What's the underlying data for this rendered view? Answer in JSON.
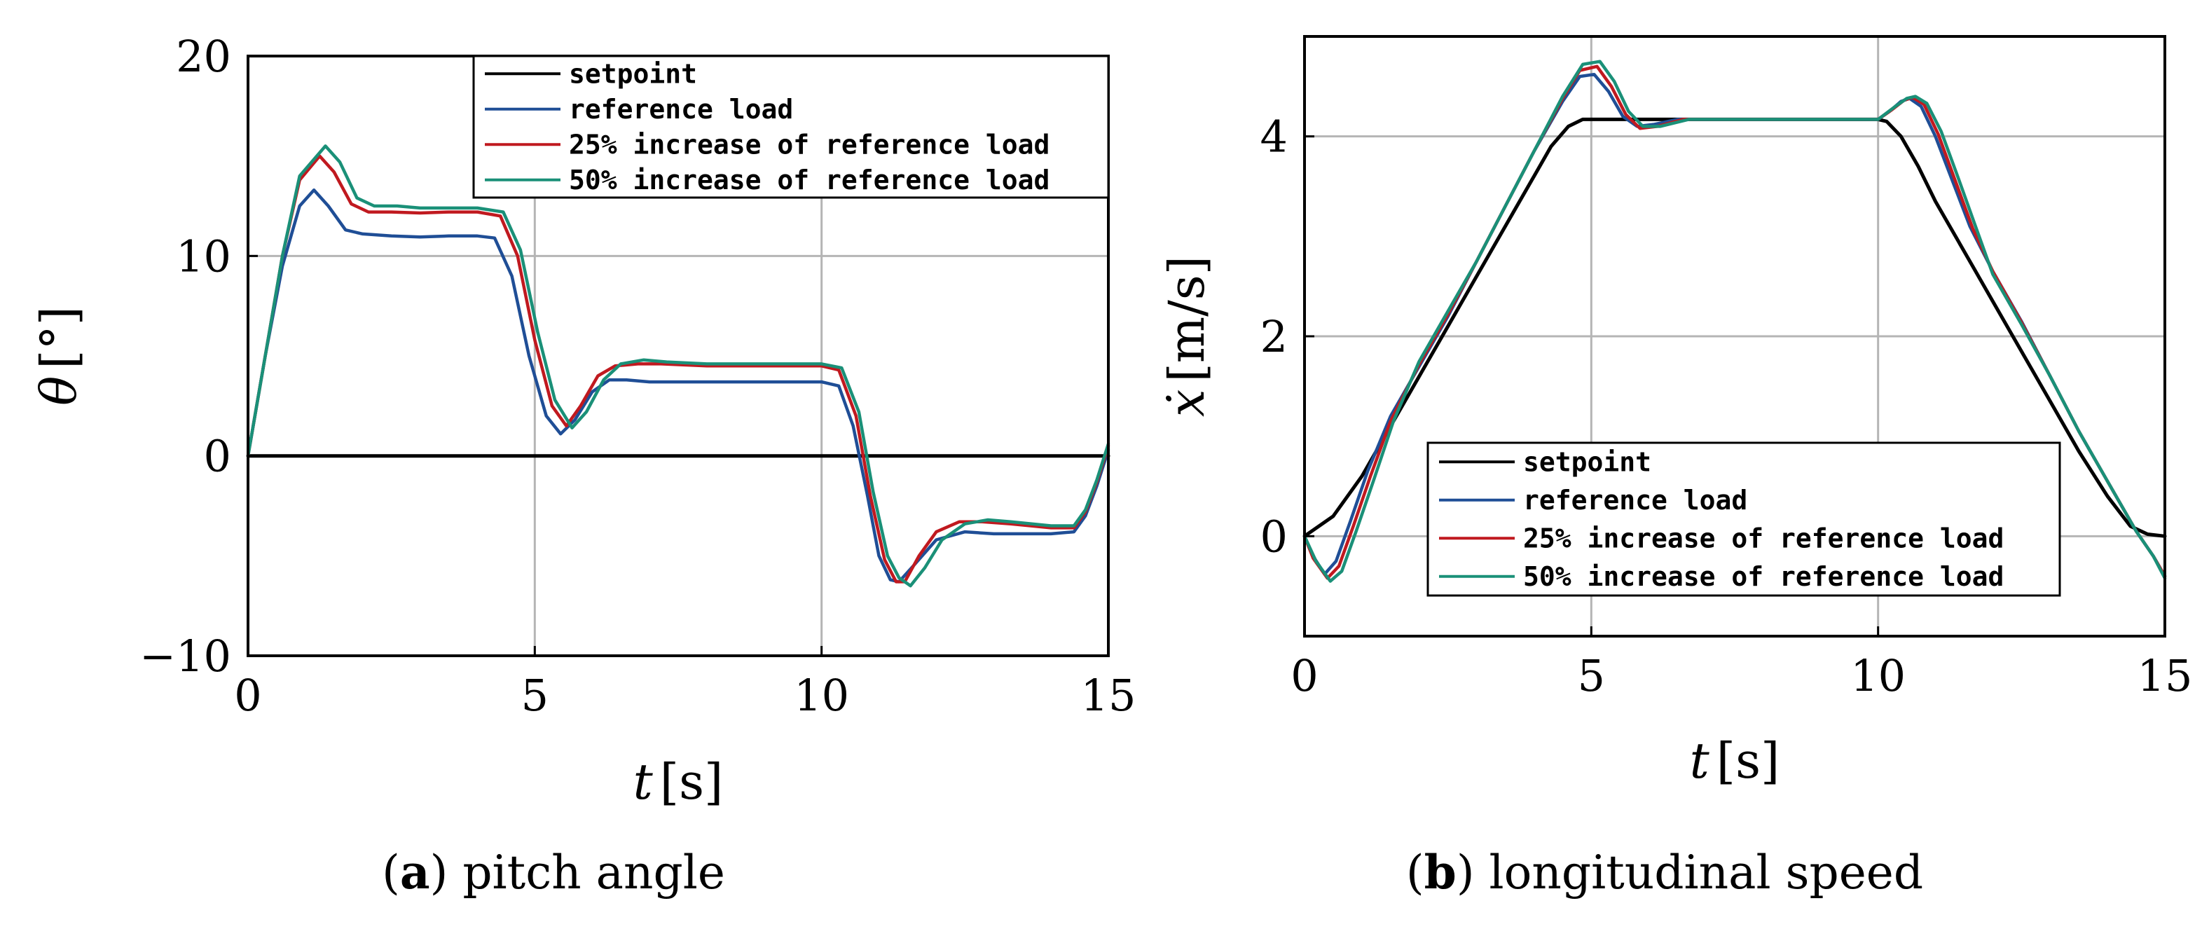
{
  "chart_data": [
    {
      "type": "line",
      "caption_letter": "a",
      "caption_text": "pitch angle",
      "xlabel_var": "t",
      "xlabel_unit": "[s]",
      "ylabel_var": "θ",
      "ylabel_unit": "[°]",
      "xlim": [
        0,
        15
      ],
      "ylim": [
        -10,
        20
      ],
      "xticks": [
        0,
        5,
        10,
        15
      ],
      "xtick_labels": [
        "0",
        "5",
        "10",
        "15"
      ],
      "yticks": [
        -10,
        0,
        10,
        20
      ],
      "ytick_labels": [
        "−10",
        "0",
        "10",
        "20"
      ],
      "grid": true,
      "legend_position": "top-right",
      "series": [
        {
          "name": "setpoint",
          "color": "#000000",
          "x": [
            0,
            15
          ],
          "y": [
            0,
            0
          ]
        },
        {
          "name": "reference load",
          "color": "#1f4e96",
          "x": [
            0,
            0.3,
            0.6,
            0.9,
            1.15,
            1.4,
            1.7,
            2.0,
            2.5,
            3.0,
            3.5,
            4.0,
            4.3,
            4.6,
            4.9,
            5.2,
            5.45,
            5.7,
            6.0,
            6.3,
            6.6,
            7.0,
            8.0,
            9.0,
            10.0,
            10.3,
            10.55,
            10.8,
            11.0,
            11.2,
            11.35,
            11.6,
            12.0,
            12.5,
            13.0,
            13.5,
            14.0,
            14.4,
            14.6,
            14.8,
            15.0
          ],
          "y": [
            0,
            5.0,
            9.5,
            12.5,
            13.3,
            12.5,
            11.3,
            11.1,
            11.0,
            10.95,
            11.0,
            11.0,
            10.9,
            9.0,
            5.0,
            2.0,
            1.1,
            1.8,
            3.2,
            3.8,
            3.8,
            3.7,
            3.7,
            3.7,
            3.7,
            3.5,
            1.5,
            -2.0,
            -5.0,
            -6.2,
            -6.3,
            -5.5,
            -4.2,
            -3.8,
            -3.9,
            -3.9,
            -3.9,
            -3.8,
            -3.0,
            -1.5,
            0.3
          ]
        },
        {
          "name": "25% increase of reference load",
          "color": "#c0191f",
          "x": [
            0,
            0.3,
            0.6,
            0.9,
            1.25,
            1.5,
            1.8,
            2.1,
            2.5,
            3.0,
            3.5,
            4.0,
            4.4,
            4.7,
            5.0,
            5.3,
            5.55,
            5.8,
            6.1,
            6.4,
            6.8,
            7.2,
            8.0,
            9.0,
            10.0,
            10.3,
            10.6,
            10.85,
            11.1,
            11.3,
            11.45,
            11.7,
            12.0,
            12.4,
            12.8,
            13.3,
            14.0,
            14.4,
            14.6,
            14.8,
            15.0
          ],
          "y": [
            0,
            5.0,
            10.0,
            13.8,
            15.0,
            14.2,
            12.6,
            12.2,
            12.2,
            12.15,
            12.2,
            12.2,
            12.0,
            10.0,
            5.8,
            2.5,
            1.5,
            2.5,
            4.0,
            4.5,
            4.6,
            4.6,
            4.5,
            4.5,
            4.5,
            4.3,
            2.0,
            -2.0,
            -5.2,
            -6.3,
            -6.3,
            -5.0,
            -3.8,
            -3.3,
            -3.3,
            -3.4,
            -3.6,
            -3.6,
            -2.8,
            -1.3,
            0.5
          ]
        },
        {
          "name": "50% increase of reference load",
          "color": "#1a9078",
          "x": [
            0,
            0.3,
            0.6,
            0.9,
            1.35,
            1.6,
            1.9,
            2.2,
            2.6,
            3.0,
            3.5,
            4.0,
            4.45,
            4.75,
            5.05,
            5.35,
            5.65,
            5.9,
            6.2,
            6.5,
            6.9,
            7.3,
            8.0,
            9.0,
            10.0,
            10.35,
            10.65,
            10.9,
            11.15,
            11.35,
            11.55,
            11.8,
            12.1,
            12.5,
            12.9,
            13.3,
            14.0,
            14.4,
            14.6,
            14.8,
            15.0
          ],
          "y": [
            0,
            5.0,
            10.0,
            14.0,
            15.5,
            14.7,
            12.9,
            12.5,
            12.5,
            12.4,
            12.4,
            12.4,
            12.2,
            10.3,
            6.2,
            2.8,
            1.4,
            2.2,
            3.8,
            4.6,
            4.8,
            4.7,
            4.6,
            4.6,
            4.6,
            4.4,
            2.2,
            -1.8,
            -5.0,
            -6.1,
            -6.5,
            -5.6,
            -4.2,
            -3.4,
            -3.2,
            -3.3,
            -3.5,
            -3.5,
            -2.7,
            -1.2,
            0.6
          ]
        }
      ]
    },
    {
      "type": "line",
      "caption_letter": "b",
      "caption_text": "longitudinal speed",
      "xlabel_var": "t",
      "xlabel_unit": "[s]",
      "ylabel_var": "ẋ",
      "ylabel_unit": "[m/s]",
      "xlim": [
        0,
        15
      ],
      "ylim": [
        -1,
        5
      ],
      "xticks": [
        0,
        5,
        10,
        15
      ],
      "xtick_labels": [
        "0",
        "5",
        "10",
        "15"
      ],
      "yticks": [
        0,
        2,
        4
      ],
      "ytick_labels": [
        "0",
        "2",
        "4"
      ],
      "grid": true,
      "legend_position": "bottom-left",
      "series": [
        {
          "name": "setpoint",
          "color": "#000000",
          "x": [
            0,
            0.5,
            1.0,
            1.5,
            2.0,
            2.5,
            3.0,
            3.5,
            4.0,
            4.3,
            4.6,
            4.85,
            5.0,
            6.0,
            7.0,
            8.0,
            9.0,
            10.0,
            10.15,
            10.4,
            10.7,
            11.0,
            11.5,
            12.0,
            12.5,
            13.0,
            13.5,
            14.0,
            14.4,
            14.7,
            15.0
          ],
          "y": [
            0,
            0.2,
            0.6,
            1.1,
            1.6,
            2.1,
            2.6,
            3.1,
            3.6,
            3.9,
            4.1,
            4.17,
            4.17,
            4.17,
            4.17,
            4.17,
            4.17,
            4.17,
            4.15,
            4.0,
            3.7,
            3.35,
            2.85,
            2.35,
            1.85,
            1.35,
            0.85,
            0.4,
            0.1,
            0.02,
            0
          ]
        },
        {
          "name": "reference load",
          "color": "#1f4e96",
          "x": [
            0,
            0.15,
            0.35,
            0.55,
            0.8,
            1.1,
            1.5,
            2.0,
            2.5,
            3.0,
            3.5,
            4.0,
            4.5,
            4.8,
            5.05,
            5.3,
            5.55,
            5.8,
            6.1,
            6.5,
            7.0,
            8.0,
            9.0,
            10.0,
            10.2,
            10.4,
            10.55,
            10.75,
            11.0,
            11.3,
            11.6,
            12.0,
            12.5,
            13.0,
            13.5,
            14.0,
            14.5,
            14.8,
            15.0
          ],
          "y": [
            0,
            -0.2,
            -0.38,
            -0.25,
            0.15,
            0.65,
            1.2,
            1.7,
            2.2,
            2.75,
            3.3,
            3.85,
            4.35,
            4.6,
            4.62,
            4.45,
            4.2,
            4.1,
            4.12,
            4.17,
            4.17,
            4.17,
            4.17,
            4.17,
            4.25,
            4.35,
            4.38,
            4.3,
            4.0,
            3.55,
            3.1,
            2.65,
            2.15,
            1.6,
            1.05,
            0.55,
            0.05,
            -0.2,
            -0.4
          ]
        },
        {
          "name": "25% increase of reference load",
          "color": "#c0191f",
          "x": [
            0,
            0.15,
            0.4,
            0.6,
            0.85,
            1.15,
            1.5,
            2.0,
            2.5,
            3.0,
            3.5,
            4.0,
            4.5,
            4.8,
            5.1,
            5.35,
            5.6,
            5.85,
            6.15,
            6.6,
            7.0,
            8.0,
            9.0,
            10.0,
            10.25,
            10.45,
            10.6,
            10.8,
            11.05,
            11.35,
            11.65,
            12.0,
            12.5,
            13.0,
            13.5,
            14.0,
            14.5,
            14.8,
            15.0
          ],
          "y": [
            0,
            -0.22,
            -0.42,
            -0.3,
            0.1,
            0.6,
            1.15,
            1.72,
            2.22,
            2.75,
            3.3,
            3.85,
            4.38,
            4.66,
            4.7,
            4.5,
            4.22,
            4.08,
            4.1,
            4.17,
            4.17,
            4.17,
            4.17,
            4.17,
            4.27,
            4.36,
            4.39,
            4.32,
            4.02,
            3.55,
            3.08,
            2.65,
            2.14,
            1.6,
            1.05,
            0.55,
            0.05,
            -0.2,
            -0.4
          ]
        },
        {
          "name": "50% increase of reference load",
          "color": "#1a9078",
          "x": [
            0,
            0.2,
            0.45,
            0.65,
            0.9,
            1.2,
            1.55,
            2.0,
            2.5,
            3.0,
            3.5,
            4.0,
            4.5,
            4.85,
            5.15,
            5.4,
            5.65,
            5.9,
            6.2,
            6.7,
            7.0,
            8.0,
            9.0,
            10.0,
            10.3,
            10.5,
            10.65,
            10.85,
            11.1,
            11.4,
            11.7,
            12.0,
            12.5,
            13.0,
            13.5,
            14.0,
            14.5,
            14.8,
            15.0
          ],
          "y": [
            0,
            -0.25,
            -0.45,
            -0.35,
            0.05,
            0.55,
            1.15,
            1.75,
            2.25,
            2.75,
            3.3,
            3.85,
            4.4,
            4.72,
            4.75,
            4.55,
            4.25,
            4.1,
            4.1,
            4.17,
            4.17,
            4.17,
            4.17,
            4.17,
            4.3,
            4.38,
            4.4,
            4.33,
            4.05,
            3.58,
            3.1,
            2.62,
            2.12,
            1.6,
            1.05,
            0.55,
            0.05,
            -0.2,
            -0.42
          ]
        }
      ]
    }
  ]
}
